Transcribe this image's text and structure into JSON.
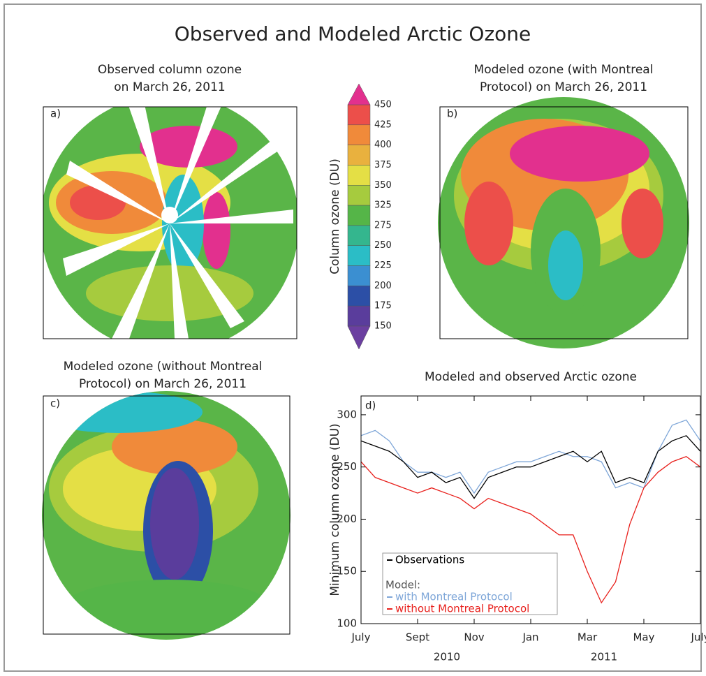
{
  "title": "Observed and Modeled Arctic Ozone",
  "maps": [
    {
      "label": "a)",
      "title": [
        "Observed column ozone",
        "on March 26, 2011"
      ]
    },
    {
      "label": "b)",
      "title": [
        "Modeled ozone (with Montreal",
        "Protocol) on March 26, 2011"
      ]
    },
    {
      "label": "c)",
      "title": [
        "Modeled ozone (without Montreal",
        "Protocol) on March 26, 2011"
      ]
    }
  ],
  "colorbar": {
    "label": "Column ozone (DU)",
    "ticks": [
      450,
      425,
      400,
      375,
      350,
      325,
      275,
      250,
      225,
      200,
      175,
      150
    ],
    "colors": [
      "#ec4f4a",
      "#f08a3a",
      "#e9b13e",
      "#e4df45",
      "#a6cb3e",
      "#55b548",
      "#34b68e",
      "#2bbdc6",
      "#3b8fd1",
      "#2c4fa6",
      "#5a3d9c"
    ],
    "extend_colors": [
      "#e2308e",
      "#6b3fa0"
    ]
  },
  "chart_data": {
    "type": "line",
    "title": "Modeled and observed Arctic ozone",
    "panel_label": "d)",
    "ylabel": "Minimum column ozone (DU)",
    "x": [
      0,
      0.5,
      1,
      1.5,
      2,
      2.5,
      3,
      3.5,
      4,
      4.5,
      5,
      5.5,
      6,
      6.5,
      7,
      7.5,
      8,
      8.5,
      9,
      9.5,
      10,
      10.5,
      11,
      11.5,
      12
    ],
    "xlim": [
      0,
      12
    ],
    "xticks": [
      {
        "value": 0,
        "label": "July"
      },
      {
        "value": 2,
        "label": "Sept"
      },
      {
        "value": 4,
        "label": "Nov"
      },
      {
        "value": 6,
        "label": "Jan"
      },
      {
        "value": 8,
        "label": "Mar"
      },
      {
        "value": 10,
        "label": "May"
      },
      {
        "value": 12,
        "label": "July"
      }
    ],
    "year_labels": [
      "2010",
      "2011"
    ],
    "ylim": [
      100,
      318
    ],
    "yticks": [
      100,
      150,
      200,
      250,
      300
    ],
    "legend_heading": "Model:",
    "series": [
      {
        "name": "Observations",
        "color": "#000000",
        "values": [
          275,
          270,
          265,
          255,
          240,
          245,
          235,
          240,
          220,
          240,
          245,
          250,
          250,
          255,
          260,
          265,
          255,
          265,
          235,
          240,
          235,
          265,
          275,
          280,
          265
        ]
      },
      {
        "name": "with Montreal Protocol",
        "color": "#7ea6d8",
        "values": [
          280,
          285,
          275,
          255,
          245,
          245,
          240,
          245,
          225,
          245,
          250,
          255,
          255,
          260,
          265,
          260,
          260,
          255,
          230,
          235,
          230,
          265,
          290,
          295,
          275
        ]
      },
      {
        "name": "without  Montreal Protocol",
        "color": "#e8201c",
        "values": [
          255,
          240,
          235,
          230,
          225,
          230,
          225,
          220,
          210,
          220,
          215,
          210,
          205,
          195,
          185,
          185,
          150,
          120,
          140,
          195,
          230,
          245,
          255,
          260,
          250
        ]
      }
    ]
  }
}
